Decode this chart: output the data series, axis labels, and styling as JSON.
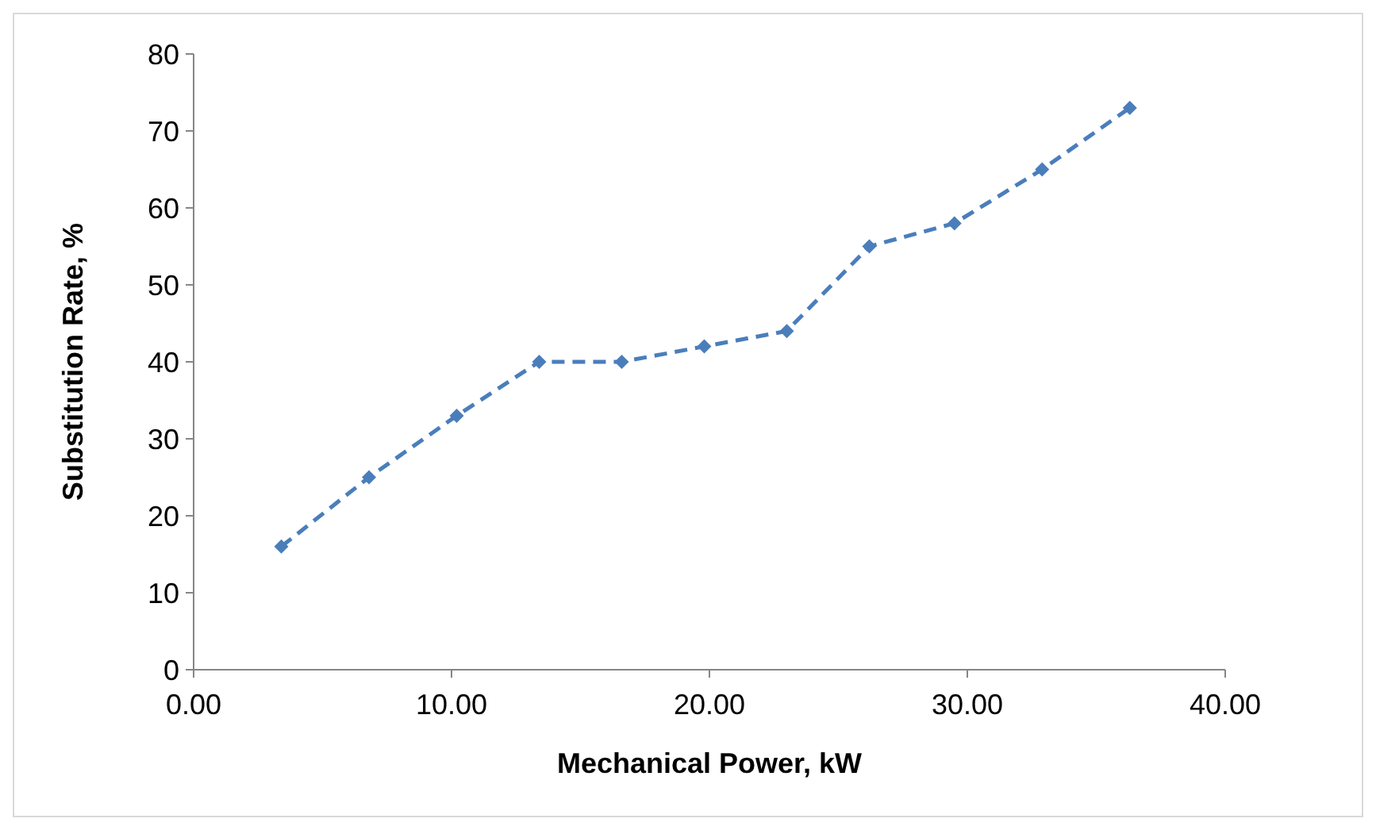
{
  "chart_data": {
    "type": "line",
    "xlabel": "Mechanical Power, kW",
    "ylabel": "Substitution Rate, %",
    "x": [
      3.4,
      6.8,
      10.2,
      13.4,
      16.6,
      19.8,
      23.0,
      26.2,
      29.5,
      32.9,
      36.3
    ],
    "series": [
      {
        "color": "#4a7ebb",
        "values": [
          16,
          25,
          33,
          40,
          40,
          42,
          44,
          55,
          58,
          65,
          73
        ]
      }
    ],
    "xlim": [
      0,
      40
    ],
    "xticks": [
      {
        "value": 0,
        "label": "0.00"
      },
      {
        "value": 10,
        "label": "10.00"
      },
      {
        "value": 20,
        "label": "20.00"
      },
      {
        "value": 30,
        "label": "30.00"
      },
      {
        "value": 40,
        "label": "40.00"
      }
    ],
    "ylim": [
      0,
      80
    ],
    "yticks": [
      0,
      10,
      20,
      30,
      40,
      50,
      60,
      70,
      80
    ],
    "grid": false,
    "marker": "diamond",
    "line_style": "dashed"
  }
}
